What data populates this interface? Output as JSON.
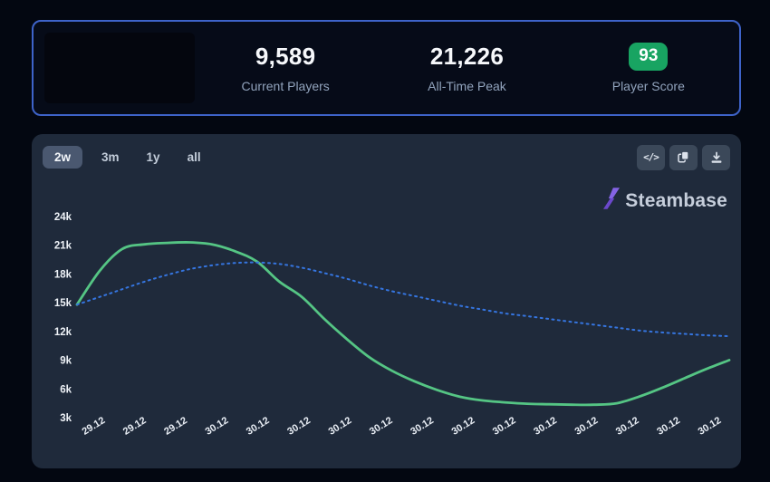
{
  "colors": {
    "page_bg": "#030711",
    "stats_card_bg": "#060b18",
    "stats_card_border": "#3e63c9",
    "chart_card_bg": "#1f2a3b",
    "badge_green": "#18a462",
    "players_line_green": "#55c584",
    "trend_line_blue": "#3575e0",
    "brand_purple": "#7a55dc"
  },
  "stats_card": {
    "stats": [
      {
        "value": "9,589",
        "label": "Current Players"
      },
      {
        "value": "21,226",
        "label": "All-Time Peak"
      },
      {
        "value": "93",
        "label": "Player Score"
      }
    ]
  },
  "chart_card": {
    "ranges": [
      {
        "label": "2w",
        "active": true
      },
      {
        "label": "3m",
        "active": false
      },
      {
        "label": "1y",
        "active": false
      },
      {
        "label": "all",
        "active": false
      }
    ],
    "tools": {
      "code_glyph": "</>"
    },
    "brand": "Steambase"
  },
  "chart_data": {
    "type": "line",
    "title": "",
    "grid": false,
    "legend": "none",
    "ylim": [
      2500,
      25500
    ],
    "y_ticks": [
      {
        "label": "24k",
        "value": 24000
      },
      {
        "label": "21k",
        "value": 21000
      },
      {
        "label": "18k",
        "value": 18000
      },
      {
        "label": "15k",
        "value": 15000
      },
      {
        "label": "12k",
        "value": 12000
      },
      {
        "label": "9k",
        "value": 9000
      },
      {
        "label": "6k",
        "value": 6000
      },
      {
        "label": "3k",
        "value": 3000
      }
    ],
    "x_tick_labels": [
      "29.12",
      "29.12",
      "29.12",
      "30.12",
      "30.12",
      "30.12",
      "30.12",
      "30.12",
      "30.12",
      "30.12",
      "30.12",
      "30.12",
      "30.12",
      "30.12",
      "30.12",
      "30.12"
    ],
    "series": [
      {
        "name": "Players",
        "style": "solid",
        "color": "#55c584",
        "values": [
          14800,
          18300,
          20600,
          21100,
          21250,
          21300,
          21100,
          20400,
          19300,
          17200,
          15600,
          13300,
          11200,
          9300,
          7900,
          6800,
          5900,
          5200,
          4800,
          4600,
          4450,
          4400,
          4350,
          4350,
          4500,
          5200,
          6100,
          7100,
          8100,
          9000
        ]
      },
      {
        "name": "Trend",
        "style": "dotted",
        "color": "#3575e0",
        "values": [
          14800,
          15600,
          16400,
          17200,
          17900,
          18500,
          18900,
          19150,
          19200,
          19050,
          18650,
          18100,
          17500,
          16800,
          16200,
          15700,
          15200,
          14700,
          14300,
          13900,
          13600,
          13300,
          13000,
          12700,
          12400,
          12100,
          11900,
          11750,
          11600,
          11500
        ]
      }
    ]
  }
}
